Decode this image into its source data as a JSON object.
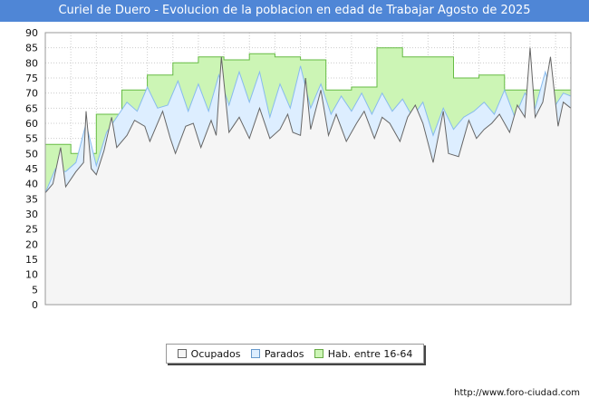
{
  "chart_data": {
    "type": "area",
    "title": "Curiel de Duero - Evolucion de la poblacion en edad de Trabajar Agosto de 2025",
    "xlabel": "",
    "ylabel": "",
    "ylim": [
      0,
      90
    ],
    "xlim": [
      2005,
      2025.6
    ],
    "y_ticks": [
      "0",
      "5",
      "10",
      "15",
      "20",
      "25",
      "30",
      "35",
      "40",
      "45",
      "50",
      "55",
      "60",
      "65",
      "70",
      "75",
      "80",
      "85",
      "90"
    ],
    "x_ticks": [
      "2005",
      "2006",
      "2007",
      "2008",
      "2009",
      "2010",
      "2011",
      "2012",
      "2013",
      "2014",
      "2015",
      "2016",
      "2017",
      "2018",
      "2019",
      "2020",
      "2021",
      "2022",
      "2023",
      "2024",
      "2025"
    ],
    "grid": true,
    "legend_position": "bottom-center",
    "watermark": "FORO-CIUDAD.COM",
    "source": "http://www.foro-ciudad.com",
    "colors": {
      "hab": "#ccf5b5",
      "parados": "#ddeeff",
      "ocupados": "#f5f5f5",
      "hab_line": "#66bb44",
      "parados_line": "#88bbee",
      "ocupados_line": "#666666",
      "title_bg": "#4f86d6"
    },
    "series": [
      {
        "name": "Hab. entre 16-64",
        "step": true,
        "points": [
          [
            2005,
            53
          ],
          [
            2006,
            50
          ],
          [
            2007,
            63
          ],
          [
            2008,
            71
          ],
          [
            2009,
            76
          ],
          [
            2010,
            80
          ],
          [
            2011,
            82
          ],
          [
            2012,
            81
          ],
          [
            2013,
            83
          ],
          [
            2014,
            82
          ],
          [
            2015,
            81
          ],
          [
            2016,
            71
          ],
          [
            2017,
            72
          ],
          [
            2018,
            85
          ],
          [
            2019,
            82
          ],
          [
            2020,
            82
          ],
          [
            2021,
            75
          ],
          [
            2022,
            76
          ],
          [
            2023,
            71
          ],
          [
            2024,
            71
          ],
          [
            2025,
            71
          ]
        ]
      },
      {
        "name": "Parados",
        "points": [
          [
            2005,
            37
          ],
          [
            2005.4,
            45
          ],
          [
            2005.8,
            44
          ],
          [
            2006.2,
            47
          ],
          [
            2006.6,
            60
          ],
          [
            2007.0,
            46
          ],
          [
            2007.4,
            57
          ],
          [
            2007.8,
            62
          ],
          [
            2008.2,
            67
          ],
          [
            2008.6,
            64
          ],
          [
            2009.0,
            72
          ],
          [
            2009.4,
            65
          ],
          [
            2009.8,
            66
          ],
          [
            2010.2,
            74
          ],
          [
            2010.6,
            64
          ],
          [
            2011.0,
            73
          ],
          [
            2011.4,
            64
          ],
          [
            2011.8,
            76
          ],
          [
            2012.2,
            66
          ],
          [
            2012.6,
            77
          ],
          [
            2013.0,
            67
          ],
          [
            2013.4,
            77
          ],
          [
            2013.8,
            62
          ],
          [
            2014.2,
            73
          ],
          [
            2014.6,
            65
          ],
          [
            2015.0,
            79
          ],
          [
            2015.4,
            65
          ],
          [
            2015.8,
            73
          ],
          [
            2016.2,
            63
          ],
          [
            2016.6,
            69
          ],
          [
            2017.0,
            64
          ],
          [
            2017.4,
            70
          ],
          [
            2017.8,
            63
          ],
          [
            2018.2,
            70
          ],
          [
            2018.6,
            64
          ],
          [
            2019.0,
            68
          ],
          [
            2019.4,
            62
          ],
          [
            2019.8,
            67
          ],
          [
            2020.2,
            56
          ],
          [
            2020.6,
            65
          ],
          [
            2021.0,
            58
          ],
          [
            2021.4,
            62
          ],
          [
            2021.8,
            64
          ],
          [
            2022.2,
            67
          ],
          [
            2022.6,
            63
          ],
          [
            2023.0,
            71
          ],
          [
            2023.4,
            62
          ],
          [
            2023.8,
            70
          ],
          [
            2024.2,
            65
          ],
          [
            2024.6,
            77
          ],
          [
            2025.0,
            66
          ],
          [
            2025.3,
            70
          ],
          [
            2025.6,
            69
          ]
        ]
      },
      {
        "name": "Ocupados",
        "points": [
          [
            2005,
            37
          ],
          [
            2005.3,
            40
          ],
          [
            2005.6,
            52
          ],
          [
            2005.8,
            39
          ],
          [
            2006.2,
            44
          ],
          [
            2006.5,
            47
          ],
          [
            2006.6,
            64
          ],
          [
            2006.8,
            45
          ],
          [
            2007.0,
            43
          ],
          [
            2007.3,
            51
          ],
          [
            2007.6,
            62
          ],
          [
            2007.8,
            52
          ],
          [
            2008.2,
            56
          ],
          [
            2008.5,
            61
          ],
          [
            2008.9,
            59
          ],
          [
            2009.1,
            54
          ],
          [
            2009.6,
            64
          ],
          [
            2009.9,
            55
          ],
          [
            2010.1,
            50
          ],
          [
            2010.5,
            59
          ],
          [
            2010.8,
            60
          ],
          [
            2011.1,
            52
          ],
          [
            2011.5,
            61
          ],
          [
            2011.7,
            56
          ],
          [
            2011.9,
            82
          ],
          [
            2012.2,
            57
          ],
          [
            2012.6,
            62
          ],
          [
            2013.0,
            55
          ],
          [
            2013.4,
            65
          ],
          [
            2013.8,
            55
          ],
          [
            2014.2,
            58
          ],
          [
            2014.5,
            63
          ],
          [
            2014.7,
            57
          ],
          [
            2015.0,
            56
          ],
          [
            2015.2,
            75
          ],
          [
            2015.4,
            58
          ],
          [
            2015.8,
            71
          ],
          [
            2016.1,
            56
          ],
          [
            2016.4,
            63
          ],
          [
            2016.8,
            54
          ],
          [
            2017.2,
            60
          ],
          [
            2017.5,
            64
          ],
          [
            2017.9,
            55
          ],
          [
            2018.2,
            62
          ],
          [
            2018.5,
            60
          ],
          [
            2018.9,
            54
          ],
          [
            2019.2,
            62
          ],
          [
            2019.5,
            66
          ],
          [
            2019.8,
            60
          ],
          [
            2020.2,
            47
          ],
          [
            2020.6,
            64
          ],
          [
            2020.8,
            50
          ],
          [
            2021.2,
            49
          ],
          [
            2021.6,
            61
          ],
          [
            2021.9,
            55
          ],
          [
            2022.2,
            58
          ],
          [
            2022.5,
            60
          ],
          [
            2022.8,
            63
          ],
          [
            2023.2,
            57
          ],
          [
            2023.5,
            66
          ],
          [
            2023.8,
            62
          ],
          [
            2024.0,
            85
          ],
          [
            2024.2,
            62
          ],
          [
            2024.5,
            67
          ],
          [
            2024.8,
            82
          ],
          [
            2025.1,
            59
          ],
          [
            2025.3,
            67
          ],
          [
            2025.6,
            65
          ]
        ]
      }
    ]
  },
  "legend": {
    "ocupados": "Ocupados",
    "parados": "Parados",
    "hab": "Hab. entre 16-64"
  }
}
